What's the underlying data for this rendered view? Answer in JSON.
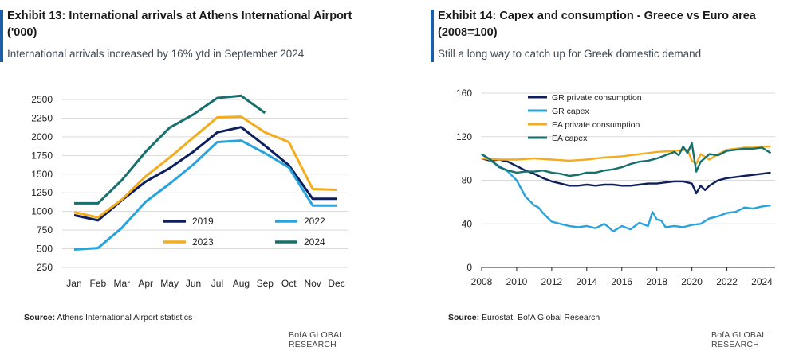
{
  "colors": {
    "accent": "#1a5fa8",
    "navy": "#0d1f5c",
    "lightblue": "#29a3dc",
    "gold": "#f2ac1e",
    "teal": "#16706e",
    "grid": "#d9d9d9"
  },
  "left": {
    "title": "Exhibit 13: International arrivals at Athens International Airport ('000)",
    "subtitle": "International arrivals increased by 16% ytd in September 2024",
    "source_label": "Source:",
    "source_text": " Athens International Airport statistics",
    "brand": "BofA GLOBAL RESEARCH"
  },
  "right": {
    "title": "Exhibit 14: Capex and consumption - Greece vs Euro area (2008=100)",
    "subtitle": "Still a long way to catch up for Greek domestic demand",
    "source_label": "Source:",
    "source_text": " Eurostat, BofA Global Research",
    "brand": "BofA GLOBAL RESEARCH"
  },
  "chart_data": [
    {
      "type": "line",
      "categories": [
        "Jan",
        "Feb",
        "Mar",
        "Apr",
        "May",
        "Jun",
        "Jul",
        "Aug",
        "Sep",
        "Oct",
        "Nov",
        "Dec"
      ],
      "ylim": [
        250,
        2500
      ],
      "yticks": [
        250,
        500,
        750,
        1000,
        1250,
        1500,
        1750,
        2000,
        2250,
        2500
      ],
      "grid": true,
      "legend_placement": "bottom-center",
      "series": [
        {
          "name": "2019",
          "color": "#0d1f5c",
          "values": [
            950,
            880,
            1150,
            1400,
            1580,
            1800,
            2060,
            2130,
            1880,
            1620,
            1170,
            1170
          ]
        },
        {
          "name": "2022",
          "color": "#29a3dc",
          "values": [
            490,
            510,
            780,
            1130,
            1370,
            1630,
            1930,
            1950,
            1780,
            1590,
            1080,
            1080
          ]
        },
        {
          "name": "2023",
          "color": "#f2ac1e",
          "values": [
            990,
            920,
            1160,
            1470,
            1720,
            1990,
            2260,
            2270,
            2060,
            1930,
            1300,
            1290
          ]
        },
        {
          "name": "2024",
          "color": "#16706e",
          "values": [
            1110,
            1110,
            1420,
            1800,
            2120,
            2300,
            2520,
            2550,
            2320,
            null,
            null,
            null
          ]
        }
      ]
    },
    {
      "type": "line",
      "xlim": [
        2008,
        2024.75
      ],
      "xticks": [
        2008,
        2010,
        2012,
        2014,
        2016,
        2018,
        2020,
        2022,
        2024
      ],
      "ylim": [
        0,
        160
      ],
      "yticks": [
        0,
        40,
        80,
        120,
        160
      ],
      "grid": true,
      "legend_placement": "top-left",
      "series": [
        {
          "name": "GR private consumption",
          "color": "#0d1f5c",
          "x": [
            2008,
            2008.5,
            2009,
            2009.5,
            2010,
            2010.5,
            2011,
            2011.5,
            2012,
            2012.5,
            2013,
            2013.5,
            2014,
            2014.5,
            2015,
            2015.5,
            2016,
            2016.5,
            2017,
            2017.5,
            2018,
            2018.5,
            2019,
            2019.5,
            2020,
            2020.25,
            2020.5,
            2020.75,
            2021,
            2021.5,
            2022,
            2022.5,
            2023,
            2023.5,
            2024,
            2024.5
          ],
          "y": [
            100,
            98,
            99,
            97,
            93,
            89,
            86,
            82,
            79,
            77,
            75,
            75,
            76,
            75,
            76,
            76,
            75,
            75,
            76,
            77,
            77,
            78,
            79,
            79,
            77,
            68,
            75,
            71,
            75,
            80,
            82,
            83,
            84,
            85,
            86,
            87
          ]
        },
        {
          "name": "GR capex",
          "color": "#29a3dc",
          "x": [
            2008,
            2008.5,
            2009,
            2009.5,
            2010,
            2010.5,
            2011,
            2011.25,
            2011.5,
            2012,
            2012.5,
            2013,
            2013.5,
            2014,
            2014.5,
            2015,
            2015.25,
            2015.5,
            2016,
            2016.5,
            2017,
            2017.5,
            2017.75,
            2018,
            2018.25,
            2018.5,
            2019,
            2019.5,
            2020,
            2020.5,
            2021,
            2021.5,
            2022,
            2022.5,
            2023,
            2023.5,
            2024,
            2024.5
          ],
          "y": [
            104,
            98,
            93,
            88,
            80,
            65,
            57,
            55,
            50,
            42,
            40,
            38,
            37,
            38,
            36,
            40,
            37,
            33,
            38,
            35,
            41,
            38,
            51,
            44,
            43,
            37,
            38,
            37,
            39,
            40,
            45,
            47,
            50,
            51,
            55,
            54,
            56,
            57
          ]
        },
        {
          "name": "EA private consumption",
          "color": "#f2ac1e",
          "x": [
            2008,
            2009,
            2010,
            2011,
            2012,
            2013,
            2014,
            2015,
            2016,
            2017,
            2018,
            2019,
            2019.75,
            2020,
            2020.25,
            2020.5,
            2021,
            2021.5,
            2022,
            2022.5,
            2023,
            2023.5,
            2024,
            2024.5
          ],
          "y": [
            100,
            99,
            99,
            100,
            99,
            98,
            99,
            101,
            102,
            104,
            106,
            107,
            108,
            98,
            95,
            104,
            99,
            104,
            108,
            109,
            110,
            110,
            111,
            111
          ]
        },
        {
          "name": "EA capex",
          "color": "#16706e",
          "x": [
            2008,
            2008.5,
            2009,
            2009.5,
            2010,
            2010.5,
            2011,
            2011.5,
            2012,
            2012.5,
            2013,
            2013.5,
            2014,
            2014.5,
            2015,
            2015.5,
            2016,
            2016.5,
            2017,
            2017.5,
            2018,
            2018.5,
            2019,
            2019.25,
            2019.5,
            2019.75,
            2020,
            2020.25,
            2020.5,
            2021,
            2021.5,
            2022,
            2022.5,
            2023,
            2023.5,
            2024,
            2024.5
          ],
          "y": [
            104,
            99,
            92,
            89,
            87,
            88,
            88,
            89,
            87,
            86,
            84,
            85,
            87,
            87,
            89,
            90,
            92,
            95,
            97,
            98,
            100,
            103,
            106,
            103,
            111,
            105,
            114,
            88,
            97,
            104,
            103,
            107,
            108,
            109,
            109,
            110,
            105
          ]
        }
      ]
    }
  ]
}
